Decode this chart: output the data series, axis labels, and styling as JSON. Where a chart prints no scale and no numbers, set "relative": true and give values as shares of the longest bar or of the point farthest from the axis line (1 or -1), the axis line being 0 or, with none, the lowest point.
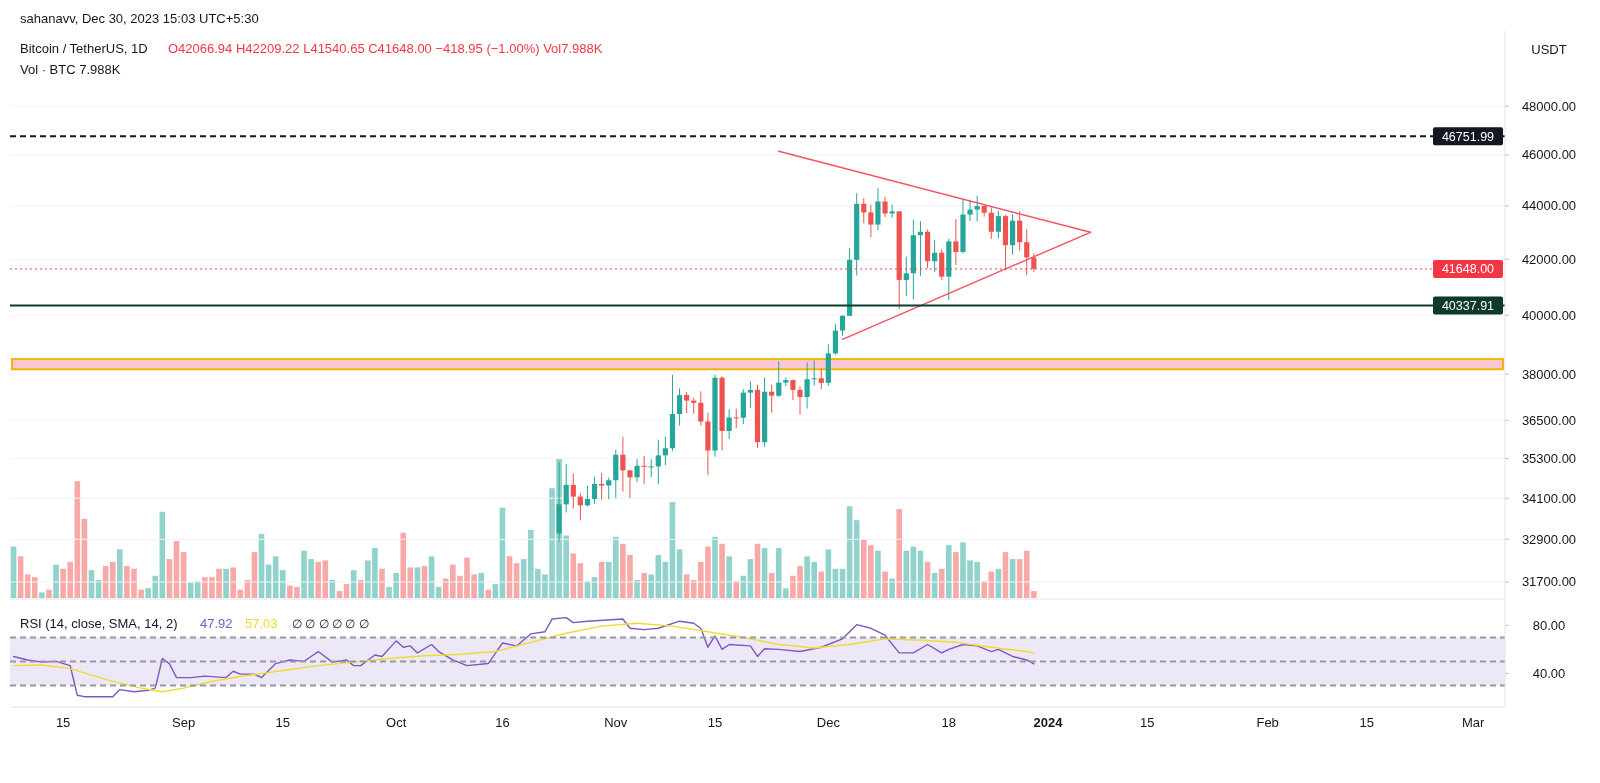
{
  "chart_data": [
    {
      "type": "candlestick",
      "title": "Bitcoin / TetherUS, 1D",
      "ylabel": "USDT",
      "log": true,
      "grid": "y",
      "tick_labels": "y",
      "annotations": [
        "sahanavv, Dec 30, 2023 15:03 UTC+5:30",
        "O42066.94  H42209.22  L41540.65  C41648.00  −418.95 (−1.00%)  Vol7.988K"
      ],
      "xlim": [
        "2023-08-07T12:00",
        "2024-03-05T12:00"
      ],
      "ylim": [
        31260,
        51250
      ],
      "yticks": [
        {
          "value": 31700,
          "label": "31700.00"
        },
        {
          "value": 32900,
          "label": "32900.00"
        },
        {
          "value": 34100,
          "label": "34100.00"
        },
        {
          "value": 35300,
          "label": "35300.00"
        },
        {
          "value": 36500,
          "label": "36500.00"
        },
        {
          "value": 38000,
          "label": "38000.00"
        },
        {
          "value": 40000,
          "label": "40000.00"
        },
        {
          "value": 42000,
          "label": "42000.00"
        },
        {
          "value": 44000,
          "label": "44000.00"
        },
        {
          "value": 46000,
          "label": "46000.00"
        },
        {
          "value": 48000,
          "label": "48000.00"
        }
      ],
      "x": [
        "2023-10-24",
        "2023-10-25",
        "2023-10-26",
        "2023-10-27",
        "2023-10-28",
        "2023-10-29",
        "2023-10-30",
        "2023-10-31",
        "2023-11-01",
        "2023-11-02",
        "2023-11-03",
        "2023-11-04",
        "2023-11-05",
        "2023-11-06",
        "2023-11-07",
        "2023-11-08",
        "2023-11-09",
        "2023-11-10",
        "2023-11-11",
        "2023-11-12",
        "2023-11-13",
        "2023-11-14",
        "2023-11-15",
        "2023-11-16",
        "2023-11-17",
        "2023-11-18",
        "2023-11-19",
        "2023-11-20",
        "2023-11-21",
        "2023-11-22",
        "2023-11-23",
        "2023-11-24",
        "2023-11-25",
        "2023-11-26",
        "2023-11-27",
        "2023-11-28",
        "2023-11-29",
        "2023-11-30",
        "2023-12-01",
        "2023-12-02",
        "2023-12-03",
        "2023-12-04",
        "2023-12-05",
        "2023-12-06",
        "2023-12-07",
        "2023-12-08",
        "2023-12-09",
        "2023-12-10",
        "2023-12-11",
        "2023-12-12",
        "2023-12-13",
        "2023-12-14",
        "2023-12-15",
        "2023-12-16",
        "2023-12-17",
        "2023-12-18",
        "2023-12-19",
        "2023-12-20",
        "2023-12-21",
        "2023-12-22",
        "2023-12-23",
        "2023-12-24",
        "2023-12-25",
        "2023-12-26",
        "2023-12-27",
        "2023-12-28",
        "2023-12-29",
        "2023-12-30"
      ],
      "ohlc": [
        [
          33070,
          35200,
          32840,
          33920
        ],
        [
          33920,
          35130,
          33680,
          34500
        ],
        [
          34500,
          34840,
          33800,
          34150
        ],
        [
          34150,
          34250,
          33450,
          33890
        ],
        [
          33890,
          34480,
          33860,
          34080
        ],
        [
          34080,
          34750,
          33930,
          34530
        ],
        [
          34530,
          34860,
          34060,
          34480
        ],
        [
          34480,
          34720,
          34070,
          34640
        ],
        [
          34640,
          35580,
          34100,
          35420
        ],
        [
          35420,
          35980,
          34300,
          34940
        ],
        [
          34940,
          34950,
          34100,
          34730
        ],
        [
          34730,
          35280,
          34580,
          35080
        ],
        [
          35080,
          35380,
          34520,
          35050
        ],
        [
          35040,
          35280,
          34740,
          35060
        ],
        [
          35060,
          35890,
          34520,
          35400
        ],
        [
          35400,
          35980,
          35100,
          35620
        ],
        [
          35620,
          37970,
          35530,
          36700
        ],
        [
          36700,
          37530,
          36330,
          37310
        ],
        [
          37310,
          37410,
          36730,
          37130
        ],
        [
          37130,
          37220,
          36710,
          37060
        ],
        [
          37060,
          37430,
          36330,
          36460
        ],
        [
          36460,
          36740,
          34800,
          35550
        ],
        [
          35550,
          37980,
          35360,
          37880
        ],
        [
          37880,
          37930,
          35550,
          36160
        ],
        [
          36160,
          36850,
          35910,
          36590
        ],
        [
          36590,
          36870,
          36250,
          36580
        ],
        [
          36580,
          37500,
          36380,
          37390
        ],
        [
          37390,
          37760,
          36900,
          37480
        ],
        [
          37480,
          37650,
          35630,
          35810
        ],
        [
          35810,
          37890,
          35670,
          37420
        ],
        [
          37420,
          37650,
          36740,
          37290
        ],
        [
          37290,
          38430,
          37250,
          37720
        ],
        [
          37720,
          37890,
          37600,
          37800
        ],
        [
          37800,
          37820,
          37150,
          37480
        ],
        [
          37480,
          37590,
          36680,
          37250
        ],
        [
          37250,
          38390,
          36880,
          37830
        ],
        [
          37830,
          38450,
          37620,
          37860
        ],
        [
          37860,
          38170,
          37500,
          37710
        ],
        [
          37710,
          39000,
          37610,
          38690
        ],
        [
          38690,
          39700,
          38650,
          39470
        ],
        [
          39470,
          40000,
          39280,
          39980
        ],
        [
          39980,
          42420,
          39980,
          41980
        ],
        [
          41980,
          44490,
          41410,
          44080
        ],
        [
          44080,
          44300,
          43340,
          43750
        ],
        [
          43750,
          44050,
          42820,
          43290
        ],
        [
          43290,
          44700,
          43080,
          44170
        ],
        [
          44170,
          44360,
          43580,
          43710
        ],
        [
          43710,
          44050,
          43560,
          43790
        ],
        [
          43790,
          43800,
          40220,
          41250
        ],
        [
          41250,
          42100,
          40680,
          41490
        ],
        [
          41490,
          43480,
          40560,
          42890
        ],
        [
          42890,
          43420,
          41400,
          43020
        ],
        [
          43020,
          43100,
          41670,
          41930
        ],
        [
          41930,
          42700,
          41530,
          42240
        ],
        [
          42240,
          42360,
          41250,
          41370
        ],
        [
          41370,
          42760,
          40540,
          42660
        ],
        [
          42660,
          43500,
          41790,
          42270
        ],
        [
          42270,
          44280,
          42210,
          43670
        ],
        [
          43670,
          44240,
          43430,
          43860
        ],
        [
          43860,
          44400,
          43410,
          44000
        ],
        [
          44000,
          44020,
          43590,
          43740
        ],
        [
          43740,
          43950,
          42750,
          43020
        ],
        [
          43020,
          43810,
          42770,
          43610
        ],
        [
          43610,
          43660,
          41600,
          42520
        ],
        [
          42520,
          43680,
          42170,
          43440
        ],
        [
          43440,
          43800,
          42320,
          42630
        ],
        [
          42630,
          43120,
          41420,
          42070
        ],
        [
          42066.94,
          42209.22,
          41540.65,
          41648.0
        ]
      ],
      "series": [
        {
          "type": "line",
          "color": "#f7525f",
          "x": [
            "2023-11-24",
            "2024-01-07"
          ],
          "values": [
            46150,
            43000
          ]
        },
        {
          "type": "line",
          "color": "#f7525f",
          "x": [
            "2023-12-03",
            "2024-01-07"
          ],
          "values": [
            39170,
            43000
          ]
        }
      ],
      "ref_lines": [
        {
          "axis": "y",
          "value": 46751.99,
          "label": "46751.99",
          "color": "#131722",
          "line_style": "dashed"
        },
        {
          "axis": "y",
          "value": 41648.0,
          "label": "41648.00",
          "color": "#f23645",
          "line_style": "dotted"
        },
        {
          "axis": "y",
          "value": 40337.91,
          "label": "40337.91",
          "color": "#0c3b2e",
          "line_style": "solid"
        }
      ],
      "bands": [
        {
          "axis": "y",
          "from": 38160,
          "to": 38500,
          "color": "#f8c8d8"
        }
      ]
    },
    {
      "type": "bar",
      "relative": true,
      "tick_labels": false,
      "annotations": [
        "Vol · BTC 7.988K"
      ],
      "xlim": [
        "2023-08-07T12:00",
        "2024-03-05T12:00"
      ],
      "x": [
        "2023-08-08",
        "2023-08-09",
        "2023-08-10",
        "2023-08-11",
        "2023-08-12",
        "2023-08-13",
        "2023-08-14",
        "2023-08-15",
        "2023-08-16",
        "2023-08-17",
        "2023-08-18",
        "2023-08-19",
        "2023-08-20",
        "2023-08-21",
        "2023-08-22",
        "2023-08-23",
        "2023-08-24",
        "2023-08-25",
        "2023-08-26",
        "2023-08-27",
        "2023-08-28",
        "2023-08-29",
        "2023-08-30",
        "2023-08-31",
        "2023-09-01",
        "2023-09-02",
        "2023-09-03",
        "2023-09-04",
        "2023-09-05",
        "2023-09-06",
        "2023-09-07",
        "2023-09-08",
        "2023-09-09",
        "2023-09-10",
        "2023-09-11",
        "2023-09-12",
        "2023-09-13",
        "2023-09-14",
        "2023-09-15",
        "2023-09-16",
        "2023-09-17",
        "2023-09-18",
        "2023-09-19",
        "2023-09-20",
        "2023-09-21",
        "2023-09-22",
        "2023-09-23",
        "2023-09-24",
        "2023-09-25",
        "2023-09-26",
        "2023-09-27",
        "2023-09-28",
        "2023-09-29",
        "2023-09-30",
        "2023-10-01",
        "2023-10-02",
        "2023-10-03",
        "2023-10-04",
        "2023-10-05",
        "2023-10-06",
        "2023-10-07",
        "2023-10-08",
        "2023-10-09",
        "2023-10-10",
        "2023-10-11",
        "2023-10-12",
        "2023-10-13",
        "2023-10-14",
        "2023-10-15",
        "2023-10-16",
        "2023-10-17",
        "2023-10-18",
        "2023-10-19",
        "2023-10-20",
        "2023-10-21",
        "2023-10-22",
        "2023-10-23",
        "2023-10-24",
        "2023-10-25",
        "2023-10-26",
        "2023-10-27",
        "2023-10-28",
        "2023-10-29",
        "2023-10-30",
        "2023-10-31",
        "2023-11-01",
        "2023-11-02",
        "2023-11-03",
        "2023-11-04",
        "2023-11-05",
        "2023-11-06",
        "2023-11-07",
        "2023-11-08",
        "2023-11-09",
        "2023-11-10",
        "2023-11-11",
        "2023-11-12",
        "2023-11-13",
        "2023-11-14",
        "2023-11-15",
        "2023-11-16",
        "2023-11-17",
        "2023-11-18",
        "2023-11-19",
        "2023-11-20",
        "2023-11-21",
        "2023-11-22",
        "2023-11-23",
        "2023-11-24",
        "2023-11-25",
        "2023-11-26",
        "2023-11-27",
        "2023-11-28",
        "2023-11-29",
        "2023-11-30",
        "2023-12-01",
        "2023-12-02",
        "2023-12-03",
        "2023-12-04",
        "2023-12-05",
        "2023-12-06",
        "2023-12-07",
        "2023-12-08",
        "2023-12-09",
        "2023-12-10",
        "2023-12-11",
        "2023-12-12",
        "2023-12-13",
        "2023-12-14",
        "2023-12-15",
        "2023-12-16",
        "2023-12-17",
        "2023-12-18",
        "2023-12-19",
        "2023-12-20",
        "2023-12-21",
        "2023-12-22",
        "2023-12-23",
        "2023-12-24",
        "2023-12-25",
        "2023-12-26",
        "2023-12-27",
        "2023-12-28",
        "2023-12-29",
        "2023-12-30"
      ],
      "values": [
        0.37,
        0.3,
        0.17,
        0.15,
        0.04,
        0.06,
        0.24,
        0.21,
        0.26,
        0.84,
        0.57,
        0.2,
        0.13,
        0.23,
        0.26,
        0.35,
        0.23,
        0.21,
        0.06,
        0.07,
        0.16,
        0.62,
        0.28,
        0.41,
        0.33,
        0.11,
        0.12,
        0.15,
        0.15,
        0.21,
        0.21,
        0.22,
        0.06,
        0.13,
        0.33,
        0.46,
        0.24,
        0.3,
        0.2,
        0.09,
        0.08,
        0.34,
        0.28,
        0.26,
        0.27,
        0.13,
        0.05,
        0.1,
        0.2,
        0.13,
        0.27,
        0.36,
        0.21,
        0.08,
        0.18,
        0.47,
        0.22,
        0.22,
        0.23,
        0.3,
        0.08,
        0.14,
        0.24,
        0.16,
        0.29,
        0.17,
        0.18,
        0.06,
        0.1,
        0.65,
        0.3,
        0.25,
        0.28,
        0.49,
        0.21,
        0.17,
        0.79,
        1,
        0.45,
        0.32,
        0.25,
        0.12,
        0.15,
        0.26,
        0.26,
        0.44,
        0.39,
        0.31,
        0.13,
        0.18,
        0.17,
        0.31,
        0.26,
        0.69,
        0.35,
        0.17,
        0.13,
        0.26,
        0.37,
        0.44,
        0.39,
        0.3,
        0.12,
        0.16,
        0.28,
        0.39,
        0.36,
        0.18,
        0.36,
        0.07,
        0.16,
        0.23,
        0.3,
        0.26,
        0.19,
        0.35,
        0.21,
        0.21,
        0.66,
        0.56,
        0.42,
        0.38,
        0.34,
        0.19,
        0.14,
        0.64,
        0.34,
        0.37,
        0.34,
        0.26,
        0.18,
        0.21,
        0.38,
        0.33,
        0.4,
        0.27,
        0.26,
        0.12,
        0.19,
        0.21,
        0.33,
        0.28,
        0.28,
        0.34,
        0.05
      ],
      "colors": [
        "#92d2cc",
        "#f7a9a7",
        "#f7a9a7",
        "#f7a9a7",
        "#92d2cc",
        "#f7a9a7",
        "#92d2cc",
        "#f7a9a7",
        "#f7a9a7",
        "#f7a9a7",
        "#f7a9a7",
        "#92d2cc",
        "#92d2cc",
        "#f7a9a7",
        "#f7a9a7",
        "#92d2cc",
        "#f7a9a7",
        "#f7a9a7",
        "#f7a9a7",
        "#92d2cc",
        "#92d2cc",
        "#92d2cc",
        "#f7a9a7",
        "#f7a9a7",
        "#f7a9a7",
        "#92d2cc",
        "#92d2cc",
        "#f7a9a7",
        "#f7a9a7",
        "#f7a9a7",
        "#92d2cc",
        "#f7a9a7",
        "#f7a9a7",
        "#f7a9a7",
        "#f7a9a7",
        "#92d2cc",
        "#92d2cc",
        "#92d2cc",
        "#92d2cc",
        "#f7a9a7",
        "#f7a9a7",
        "#92d2cc",
        "#92d2cc",
        "#f7a9a7",
        "#f7a9a7",
        "#92d2cc",
        "#f7a9a7",
        "#f7a9a7",
        "#92d2cc",
        "#f7a9a7",
        "#92d2cc",
        "#92d2cc",
        "#f7a9a7",
        "#92d2cc",
        "#92d2cc",
        "#f7a9a7",
        "#f7a9a7",
        "#92d2cc",
        "#f7a9a7",
        "#92d2cc",
        "#92d2cc",
        "#f7a9a7",
        "#f7a9a7",
        "#f7a9a7",
        "#f7a9a7",
        "#f7a9a7",
        "#92d2cc",
        "#f7a9a7",
        "#92d2cc",
        "#92d2cc",
        "#f7a9a7",
        "#f7a9a7",
        "#92d2cc",
        "#92d2cc",
        "#92d2cc",
        "#92d2cc",
        "#92d2cc",
        "#92d2cc",
        "#92d2cc",
        "#f7a9a7",
        "#f7a9a7",
        "#92d2cc",
        "#92d2cc",
        "#f7a9a7",
        "#92d2cc",
        "#92d2cc",
        "#f7a9a7",
        "#f7a9a7",
        "#92d2cc",
        "#f7a9a7",
        "#92d2cc",
        "#92d2cc",
        "#92d2cc",
        "#92d2cc",
        "#92d2cc",
        "#f7a9a7",
        "#f7a9a7",
        "#f7a9a7",
        "#f7a9a7",
        "#92d2cc",
        "#f7a9a7",
        "#92d2cc",
        "#f7a9a7",
        "#92d2cc",
        "#92d2cc",
        "#f7a9a7",
        "#92d2cc",
        "#f7a9a7",
        "#92d2cc",
        "#92d2cc",
        "#f7a9a7",
        "#f7a9a7",
        "#92d2cc",
        "#92d2cc",
        "#f7a9a7",
        "#92d2cc",
        "#92d2cc",
        "#92d2cc",
        "#92d2cc",
        "#92d2cc",
        "#f7a9a7",
        "#f7a9a7",
        "#92d2cc",
        "#f7a9a7",
        "#92d2cc",
        "#f7a9a7",
        "#92d2cc",
        "#92d2cc",
        "#92d2cc",
        "#f7a9a7",
        "#92d2cc",
        "#f7a9a7",
        "#92d2cc",
        "#f7a9a7",
        "#92d2cc",
        "#92d2cc",
        "#92d2cc",
        "#f7a9a7",
        "#f7a9a7",
        "#92d2cc",
        "#f7a9a7",
        "#92d2cc",
        "#f7a9a7",
        "#f7a9a7",
        "#f7a9a7"
      ]
    },
    {
      "type": "line",
      "title": "RSI (14, close, SMA, 14, 2)",
      "annotations": [
        "47.92",
        "57.03",
        "∅ ∅ ∅ ∅ ∅ ∅"
      ],
      "xlim": [
        "2023-08-07T12:00",
        "2024-03-05T12:00"
      ],
      "xticks": [
        {
          "value": "2023-08-15",
          "label": "15"
        },
        {
          "value": "2023-09-01",
          "label": "Sep"
        },
        {
          "value": "2023-09-15",
          "label": "15"
        },
        {
          "value": "2023-10-01",
          "label": "Oct"
        },
        {
          "value": "2023-10-16",
          "label": "16"
        },
        {
          "value": "2023-11-01",
          "label": "Nov"
        },
        {
          "value": "2023-11-15",
          "label": "15"
        },
        {
          "value": "2023-12-01",
          "label": "Dec"
        },
        {
          "value": "2023-12-18",
          "label": "18"
        },
        {
          "value": "2024-01-01",
          "label": "2024"
        },
        {
          "value": "2024-01-15",
          "label": "15"
        },
        {
          "value": "2024-02-01",
          "label": "Feb"
        },
        {
          "value": "2024-02-15",
          "label": "15"
        },
        {
          "value": "2024-03-01",
          "label": "Mar"
        }
      ],
      "ylim": [
        12,
        102
      ],
      "yticks": [
        {
          "value": 40,
          "label": "40.00"
        },
        {
          "value": 80,
          "label": "80.00"
        }
      ],
      "series": [
        {
          "color": "#7e57c2",
          "x": [
            "2023-08-08",
            "2023-08-10",
            "2023-08-12",
            "2023-08-14",
            "2023-08-16",
            "2023-08-17",
            "2023-08-18",
            "2023-08-22",
            "2023-08-23",
            "2023-08-25",
            "2023-08-27",
            "2023-08-28",
            "2023-08-29",
            "2023-08-30",
            "2023-08-31",
            "2023-09-02",
            "2023-09-04",
            "2023-09-07",
            "2023-09-08",
            "2023-09-09",
            "2023-09-11",
            "2023-09-12",
            "2023-09-14",
            "2023-09-16",
            "2023-09-18",
            "2023-09-19",
            "2023-09-20",
            "2023-09-22",
            "2023-09-24",
            "2023-09-25",
            "2023-09-26",
            "2023-09-28",
            "2023-09-29",
            "2023-10-01",
            "2023-10-02",
            "2023-10-03",
            "2023-10-04",
            "2023-10-06",
            "2023-10-07",
            "2023-10-09",
            "2023-10-11",
            "2023-10-14",
            "2023-10-16",
            "2023-10-18",
            "2023-10-20",
            "2023-10-22",
            "2023-10-23",
            "2023-10-25",
            "2023-10-26",
            "2023-10-28",
            "2023-11-02",
            "2023-11-03",
            "2023-11-05",
            "2023-11-07",
            "2023-11-10",
            "2023-11-12",
            "2023-11-13",
            "2023-11-14",
            "2023-11-15",
            "2023-11-16",
            "2023-11-17",
            "2023-11-20",
            "2023-11-21",
            "2023-11-22",
            "2023-11-24",
            "2023-11-27",
            "2023-11-30",
            "2023-12-03",
            "2023-12-05",
            "2023-12-07",
            "2023-12-09",
            "2023-12-11",
            "2023-12-13",
            "2023-12-15",
            "2023-12-17",
            "2023-12-18",
            "2023-12-20",
            "2023-12-22",
            "2023-12-24",
            "2023-12-25",
            "2023-12-27",
            "2023-12-29",
            "2023-12-30"
          ],
          "values": [
            54.1,
            51.2,
            49.4,
            50,
            46.5,
            21.8,
            20.6,
            20.6,
            26.5,
            24.7,
            25.9,
            27.7,
            52.4,
            48.2,
            36.5,
            36.5,
            37.7,
            36.5,
            41.8,
            39.4,
            39.4,
            36.5,
            48.2,
            51.2,
            50,
            54.1,
            58.2,
            49.4,
            51.2,
            46.5,
            46.5,
            55.3,
            54.1,
            67.1,
            61.8,
            62.9,
            57.1,
            64.1,
            58.2,
            51.2,
            46.5,
            48.2,
            65.3,
            62.9,
            72.9,
            74.7,
            85.3,
            86.5,
            82.3,
            83.5,
            85.3,
            77.6,
            76.5,
            77.6,
            83.5,
            81.8,
            77.6,
            61.8,
            71.2,
            60,
            64.1,
            62.9,
            54.1,
            60.6,
            60,
            58.2,
            61.8,
            68.8,
            80.6,
            77.6,
            71.8,
            57.1,
            57.1,
            64.1,
            57.1,
            60,
            64.1,
            62.9,
            58.2,
            60,
            54.1,
            51.2,
            47.92
          ]
        },
        {
          "color": "#f2d930",
          "x": [
            "2023-08-08",
            "2023-08-12",
            "2023-08-16",
            "2023-08-21",
            "2023-08-26",
            "2023-08-29",
            "2023-09-01",
            "2023-09-05",
            "2023-09-10",
            "2023-09-15",
            "2023-09-20",
            "2023-09-25",
            "2023-09-30",
            "2023-10-05",
            "2023-10-10",
            "2023-10-15",
            "2023-10-20",
            "2023-10-25",
            "2023-10-30",
            "2023-11-04",
            "2023-11-09",
            "2023-11-14",
            "2023-11-19",
            "2023-11-24",
            "2023-11-29",
            "2023-12-04",
            "2023-12-09",
            "2023-12-14",
            "2023-12-19",
            "2023-12-24",
            "2023-12-29",
            "2023-12-30"
          ],
          "values": [
            46.5,
            47,
            44,
            35,
            27.7,
            24.7,
            27.7,
            33.5,
            38.2,
            42.4,
            46.5,
            49.4,
            52.4,
            54.7,
            55.9,
            58.2,
            65.9,
            73.5,
            79.4,
            81.8,
            79.4,
            74.7,
            70,
            64.1,
            61.2,
            64.1,
            68.8,
            67.6,
            65.9,
            61.8,
            58.2,
            57.03
          ]
        }
      ],
      "ref_lines": [
        {
          "axis": "y",
          "value": 70,
          "color": "#9598a1",
          "line_style": "dashed"
        },
        {
          "axis": "y",
          "value": 50,
          "color": "#9598a1",
          "line_style": "dashed"
        },
        {
          "axis": "y",
          "value": 30,
          "color": "#9598a1",
          "line_style": "dashed"
        }
      ],
      "bands": [
        {
          "axis": "y",
          "from": 30,
          "to": 70,
          "color": "#ede8f7"
        }
      ]
    }
  ]
}
